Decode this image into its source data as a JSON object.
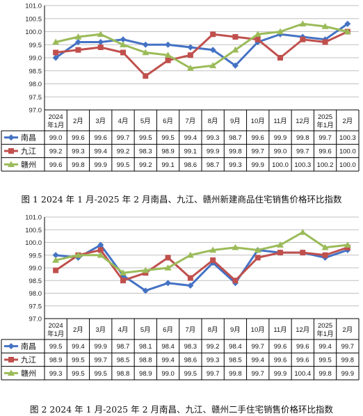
{
  "colors": {
    "nanchang": "#4472c4",
    "jiujiang": "#c0504d",
    "ganzhou": "#9bbb59",
    "grid": "#bfbfbf",
    "axis": "#000000"
  },
  "captions": {
    "chart1": "图 1 2024 年 1 月-2025 年 2 月南昌、九江、赣州新建商品住宅销售价格环比指数",
    "chart2": "图 2 2024 年 1 月-2025 年 2 月南昌、九江、赣州二手住宅销售价格环比指数"
  },
  "chart_data": [
    {
      "type": "line",
      "title": "",
      "categories": [
        [
          "2024",
          "年1月"
        ],
        [
          "2月"
        ],
        [
          "3月"
        ],
        [
          "4月"
        ],
        [
          "5月"
        ],
        [
          "6月"
        ],
        [
          "7月"
        ],
        [
          "8月"
        ],
        [
          "9月"
        ],
        [
          "10月"
        ],
        [
          "11月"
        ],
        [
          "12月"
        ],
        [
          "2025",
          "年1月"
        ],
        [
          "2月"
        ]
      ],
      "ylim": [
        97.0,
        101.0
      ],
      "yticks": [
        "97.0",
        "97.5",
        "98.0",
        "98.5",
        "99.0",
        "99.5",
        "100.0",
        "100.5",
        "101.0"
      ],
      "grid": true,
      "legend": "data-table",
      "series": [
        {
          "name": "南昌",
          "marker": "diamond",
          "values": [
            "99.0",
            "99.6",
            "99.6",
            "99.7",
            "99.5",
            "99.5",
            "99.4",
            "99.3",
            "98.7",
            "99.6",
            "99.9",
            "99.8",
            "99.7",
            "100.3"
          ]
        },
        {
          "name": "九江",
          "marker": "square",
          "values": [
            "99.2",
            "99.3",
            "99.4",
            "99.2",
            "98.3",
            "98.9",
            "99.1",
            "99.9",
            "99.8",
            "99.7",
            "99.0",
            "99.7",
            "99.6",
            "100.0"
          ]
        },
        {
          "name": "赣州",
          "marker": "triangle",
          "values": [
            "99.6",
            "99.8",
            "99.9",
            "99.5",
            "99.2",
            "99.1",
            "98.6",
            "98.7",
            "99.3",
            "99.9",
            "100.0",
            "100.3",
            "100.2",
            "100.0"
          ]
        }
      ]
    },
    {
      "type": "line",
      "title": "",
      "categories": [
        [
          "2024",
          "年1月"
        ],
        [
          "2月"
        ],
        [
          "3月"
        ],
        [
          "4月"
        ],
        [
          "5月"
        ],
        [
          "6月"
        ],
        [
          "7月"
        ],
        [
          "8月"
        ],
        [
          "9月"
        ],
        [
          "10月"
        ],
        [
          "11月"
        ],
        [
          "12月"
        ],
        [
          "2025",
          "年1月"
        ],
        [
          "2月"
        ]
      ],
      "ylim": [
        97.0,
        101.0
      ],
      "yticks": [
        "97.0",
        "97.5",
        "98.0",
        "98.5",
        "99.0",
        "99.5",
        "100.0",
        "100.5",
        "101.0"
      ],
      "grid": true,
      "legend": "data-table",
      "series": [
        {
          "name": "南昌",
          "marker": "diamond",
          "values": [
            "99.5",
            "99.4",
            "99.9",
            "98.7",
            "98.1",
            "98.4",
            "98.3",
            "99.2",
            "98.4",
            "99.7",
            "99.6",
            "99.6",
            "99.4",
            "99.7"
          ]
        },
        {
          "name": "九江",
          "marker": "square",
          "values": [
            "98.9",
            "99.5",
            "99.7",
            "98.5",
            "98.8",
            "99.4",
            "98.6",
            "99.3",
            "98.5",
            "99.4",
            "99.6",
            "99.6",
            "99.5",
            "99.8"
          ]
        },
        {
          "name": "赣州",
          "marker": "triangle",
          "values": [
            "99.3",
            "99.5",
            "99.5",
            "98.8",
            "98.9",
            "99.0",
            "99.5",
            "99.7",
            "99.8",
            "99.7",
            "99.9",
            "100.4",
            "99.8",
            "99.9"
          ]
        }
      ]
    }
  ]
}
